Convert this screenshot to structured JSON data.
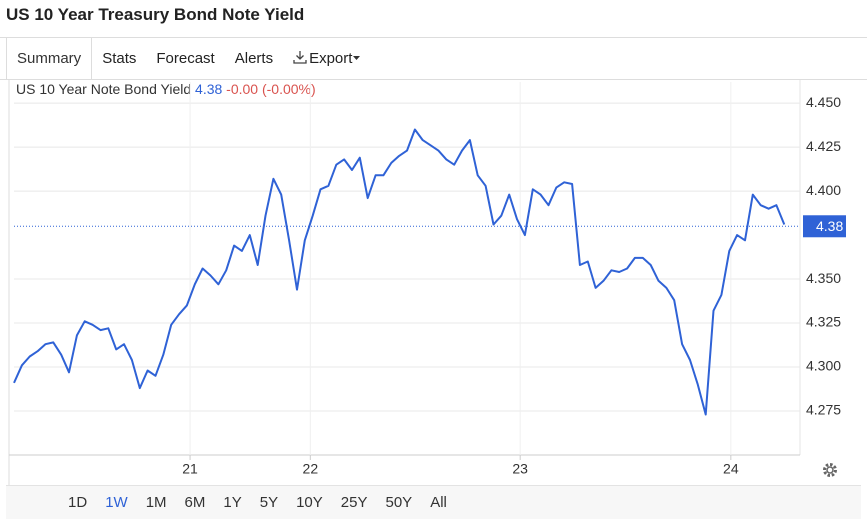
{
  "header": {
    "title": "US 10 Year Treasury Bond Note Yield"
  },
  "tabs": [
    {
      "label": "Summary",
      "selected": true
    },
    {
      "label": "Stats"
    },
    {
      "label": "Forecast"
    },
    {
      "label": "Alerts"
    },
    {
      "label": "Export"
    }
  ],
  "ranges": [
    {
      "label": "1D"
    },
    {
      "label": "1W",
      "selected": true
    },
    {
      "label": "1M"
    },
    {
      "label": "6M"
    },
    {
      "label": "1Y"
    },
    {
      "label": "5Y"
    },
    {
      "label": "10Y"
    },
    {
      "label": "25Y"
    },
    {
      "label": "50Y"
    },
    {
      "label": "All"
    }
  ],
  "chart_data": {
    "type": "line",
    "grid": true,
    "last_value": 4.38,
    "change": "-0.00",
    "change_pct": "(-0.00%)",
    "x": [
      0,
      1,
      2,
      3,
      4,
      5,
      6,
      7,
      8,
      9,
      10,
      11,
      12,
      13,
      14,
      15,
      16,
      17,
      18,
      19,
      20,
      21,
      22,
      23,
      24,
      25,
      26,
      27,
      28,
      29,
      30,
      31,
      32,
      33,
      34,
      35,
      36,
      37,
      38,
      39,
      40,
      41,
      42,
      43,
      44,
      45,
      46,
      47,
      48,
      49,
      50,
      51,
      52,
      53,
      54,
      55,
      56,
      57,
      58,
      59,
      60,
      61,
      62,
      63,
      64,
      65,
      66,
      67,
      68,
      69,
      70,
      71,
      72,
      73,
      74,
      75,
      76,
      77,
      78,
      79,
      80,
      81,
      82,
      83,
      84,
      85,
      86,
      87,
      88,
      89,
      90,
      91,
      92,
      93,
      94,
      95,
      96,
      97,
      98
    ],
    "series": [
      {
        "name": "US 10 Year Note Bond Yield",
        "color": "#2f62d6",
        "values": [
          4.291,
          4.301,
          4.306,
          4.309,
          4.313,
          4.314,
          4.307,
          4.297,
          4.318,
          4.326,
          4.324,
          4.321,
          4.322,
          4.31,
          4.313,
          4.304,
          4.288,
          4.298,
          4.295,
          4.307,
          4.324,
          4.33,
          4.335,
          4.347,
          4.356,
          4.352,
          4.347,
          4.355,
          4.369,
          4.366,
          4.375,
          4.358,
          4.386,
          4.407,
          4.398,
          4.372,
          4.344,
          4.372,
          4.386,
          4.401,
          4.403,
          4.415,
          4.418,
          4.412,
          4.419,
          4.396,
          4.409,
          4.409,
          4.416,
          4.42,
          4.423,
          4.435,
          4.429,
          4.426,
          4.423,
          4.418,
          4.415,
          4.423,
          4.429,
          4.409,
          4.403,
          4.381,
          4.386,
          4.398,
          4.384,
          4.375,
          4.401,
          4.398,
          4.392,
          4.402,
          4.405,
          4.404,
          4.358,
          4.36,
          4.345,
          4.349,
          4.355,
          4.354,
          4.356,
          4.362,
          4.362,
          4.358,
          4.349,
          4.345,
          4.338,
          4.313,
          4.304,
          4.29,
          4.273,
          4.332,
          4.341,
          4.366,
          4.375,
          4.372,
          4.398,
          4.392,
          4.39,
          4.392,
          4.381
        ]
      }
    ],
    "xlim": [
      0,
      100
    ],
    "xticks": [
      {
        "value": 22.4,
        "label": "21"
      },
      {
        "value": 37.7,
        "label": "22"
      },
      {
        "value": 64.4,
        "label": "23"
      },
      {
        "value": 91.2,
        "label": "24"
      }
    ],
    "ylim": [
      4.25,
      4.462
    ],
    "yticks": [
      {
        "value": 4.275,
        "label": "4.275"
      },
      {
        "value": 4.3,
        "label": "4.300"
      },
      {
        "value": 4.325,
        "label": "4.325"
      },
      {
        "value": 4.35,
        "label": "4.350"
      },
      {
        "value": 4.4,
        "label": "4.400"
      },
      {
        "value": 4.425,
        "label": "4.425"
      },
      {
        "value": 4.45,
        "label": "4.450"
      }
    ]
  }
}
